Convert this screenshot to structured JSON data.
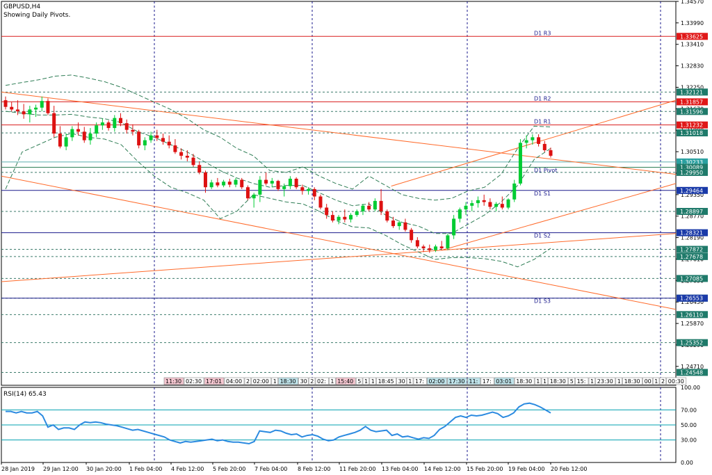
{
  "header": {
    "symbol": "GBPUSD,H4",
    "subtitle": "Showing Daily Pivots."
  },
  "rsi_header": "RSI(14) 65.43",
  "colors": {
    "up": "#00cc33",
    "down": "#dd1111",
    "frame": "#000000",
    "grid": "#1a1a8c",
    "resistance": "#d81b1b",
    "support": "#1a1a8c",
    "trend": "#ff6a2a",
    "band": "#2e7d55",
    "rsi_line": "#2b8ae0",
    "rsi_level": "#00a0b0",
    "tag_red": "#e01818",
    "tag_blue": "#1a3aa8",
    "tag_teal": "#1f7a6a",
    "tag_teal_light": "#2aa0a0"
  },
  "chart_data": {
    "type": "candlestick",
    "title": "GBPUSD,H4",
    "subtitle": "Showing Daily Pivots.",
    "ylim": [
      1.242,
      1.3457
    ],
    "price_ticks": [
      "1.34570",
      "1.33990",
      "1.33410",
      "1.32830",
      "1.32250",
      "1.31670",
      "1.31090",
      "1.30510",
      "1.29930",
      "1.29350",
      "1.28770",
      "1.28190",
      "1.27610",
      "1.27030",
      "1.26450",
      "1.25870",
      "1.25290",
      "1.24710"
    ],
    "time_labels": [
      "28 Jan 2019",
      "29 Jan 12:00",
      "30 Jan 20:00",
      "1 Feb 04:00",
      "4 Feb 12:00",
      "5 Feb 20:00",
      "7 Feb 04:00",
      "8 Feb 12:00",
      "11 Feb 20:00",
      "13 Feb 04:00",
      "14 Feb 12:00",
      "15 Feb 20:00",
      "19 Feb 04:00",
      "20 Feb 12:00"
    ],
    "pivots": [
      {
        "name": "D1 R3",
        "value": "1.33625",
        "kind": "resistance"
      },
      {
        "name": "D1 R2",
        "value": "1.31857",
        "kind": "resistance"
      },
      {
        "name": "D1 R1",
        "value": "1.31232",
        "kind": "resistance"
      },
      {
        "name": "D1 Pivot",
        "value": "1.30089",
        "kind": "pivot"
      },
      {
        "name": "D1 S1",
        "value": "1.29464",
        "kind": "support"
      },
      {
        "name": "D1 S2",
        "value": "1.28321",
        "kind": "support"
      },
      {
        "name": "D1 S3",
        "value": "1.26553",
        "kind": "support"
      }
    ],
    "price_tags": [
      {
        "value": "1.33625",
        "style": "red"
      },
      {
        "value": "1.32121",
        "style": "teal"
      },
      {
        "value": "1.31857",
        "style": "red"
      },
      {
        "value": "1.31596",
        "style": "teal"
      },
      {
        "value": "1.31232",
        "style": "red"
      },
      {
        "value": "1.31018",
        "style": "teal"
      },
      {
        "value": "1.30233",
        "style": "teal_light"
      },
      {
        "value": "1.30089",
        "style": "teal"
      },
      {
        "value": "1.29950",
        "style": "teal"
      },
      {
        "value": "1.29464",
        "style": "blue"
      },
      {
        "value": "1.28897",
        "style": "teal"
      },
      {
        "value": "1.28321",
        "style": "blue"
      },
      {
        "value": "1.27872",
        "style": "teal"
      },
      {
        "value": "1.27678",
        "style": "teal"
      },
      {
        "value": "1.27085",
        "style": "teal"
      },
      {
        "value": "1.26554",
        "style": "teal"
      },
      {
        "value": "1.26553",
        "style": "blue"
      },
      {
        "value": "1.26110",
        "style": "teal"
      },
      {
        "value": "1.25352",
        "style": "teal"
      },
      {
        "value": "1.24548",
        "style": "teal"
      }
    ],
    "dashed_levels": [
      1.32121,
      1.31596,
      1.31018,
      1.2995,
      1.28897,
      1.27872,
      1.27678,
      1.27085,
      1.26554,
      1.2611,
      1.25352,
      1.24548
    ],
    "light_level": 1.30233,
    "time_marks": [
      "11:30",
      "02:30",
      "17:01",
      "04:00",
      "2",
      "02:00",
      "1",
      "18:30",
      "30",
      "2",
      "02:",
      "1",
      "15:40",
      "5",
      "1",
      "1",
      "18:45",
      "30",
      "1",
      "17:",
      "02:00",
      "17:30",
      "11:",
      "17:",
      "03:01",
      "18:30",
      "1",
      "1",
      "18:30",
      "5",
      "15:",
      "1",
      "23:30",
      "1",
      "18:30",
      "00",
      "1",
      "2",
      "00:30"
    ],
    "candles": [
      [
        1.319,
        1.32,
        1.3165,
        1.3172
      ],
      [
        1.3172,
        1.3185,
        1.316,
        1.3165
      ],
      [
        1.3165,
        1.319,
        1.315,
        1.316
      ],
      [
        1.316,
        1.318,
        1.314,
        1.3152
      ],
      [
        1.3152,
        1.3175,
        1.313,
        1.3165
      ],
      [
        1.3165,
        1.3178,
        1.3145,
        1.317
      ],
      [
        1.317,
        1.32,
        1.316,
        1.3188
      ],
      [
        1.3188,
        1.3195,
        1.315,
        1.3155
      ],
      [
        1.3155,
        1.3175,
        1.309,
        1.31
      ],
      [
        1.31,
        1.312,
        1.306,
        1.3065
      ],
      [
        1.3065,
        1.31,
        1.3055,
        1.309
      ],
      [
        1.309,
        1.312,
        1.308,
        1.3112
      ],
      [
        1.3112,
        1.313,
        1.3095,
        1.3105
      ],
      [
        1.3105,
        1.3118,
        1.3075,
        1.3082
      ],
      [
        1.3082,
        1.3115,
        1.307,
        1.31
      ],
      [
        1.31,
        1.313,
        1.309,
        1.3122
      ],
      [
        1.3122,
        1.314,
        1.311,
        1.313
      ],
      [
        1.313,
        1.3135,
        1.3108,
        1.3115
      ],
      [
        1.3115,
        1.315,
        1.3105,
        1.3142
      ],
      [
        1.3142,
        1.3155,
        1.312,
        1.3128
      ],
      [
        1.3128,
        1.3138,
        1.31,
        1.311
      ],
      [
        1.311,
        1.3125,
        1.3095,
        1.3105
      ],
      [
        1.3105,
        1.311,
        1.306,
        1.3068
      ],
      [
        1.3068,
        1.309,
        1.3055,
        1.3082
      ],
      [
        1.3082,
        1.3105,
        1.3075,
        1.3095
      ],
      [
        1.3095,
        1.311,
        1.308,
        1.3088
      ],
      [
        1.3088,
        1.31,
        1.307,
        1.3078
      ],
      [
        1.3078,
        1.3095,
        1.306,
        1.3068
      ],
      [
        1.3068,
        1.3085,
        1.3045,
        1.305
      ],
      [
        1.305,
        1.306,
        1.303,
        1.304
      ],
      [
        1.304,
        1.3055,
        1.3025,
        1.3035
      ],
      [
        1.3035,
        1.3045,
        1.301,
        1.3015
      ],
      [
        1.3015,
        1.3025,
        1.299,
        1.2995
      ],
      [
        1.2995,
        1.3,
        1.294,
        1.2955
      ],
      [
        1.2955,
        1.2975,
        1.295,
        1.2968
      ],
      [
        1.2968,
        1.298,
        1.2955,
        1.296
      ],
      [
        1.296,
        1.2975,
        1.2955,
        1.297
      ],
      [
        1.297,
        1.2978,
        1.2955,
        1.2962
      ],
      [
        1.2962,
        1.298,
        1.2955,
        1.2975
      ],
      [
        1.2975,
        1.298,
        1.295,
        1.2955
      ],
      [
        1.2955,
        1.296,
        1.292,
        1.2925
      ],
      [
        1.2925,
        1.294,
        1.29,
        1.2935
      ],
      [
        1.2935,
        1.2985,
        1.2915,
        1.2975
      ],
      [
        1.2975,
        1.2995,
        1.296,
        1.2965
      ],
      [
        1.2965,
        1.298,
        1.2955,
        1.2972
      ],
      [
        1.2972,
        1.2975,
        1.2945,
        1.295
      ],
      [
        1.295,
        1.2965,
        1.293,
        1.2958
      ],
      [
        1.2958,
        1.2985,
        1.295,
        1.2978
      ],
      [
        1.2978,
        1.2982,
        1.295,
        1.2955
      ],
      [
        1.2955,
        1.2962,
        1.2935,
        1.2945
      ],
      [
        1.2945,
        1.2955,
        1.2935,
        1.295
      ],
      [
        1.295,
        1.2955,
        1.292,
        1.293
      ],
      [
        1.293,
        1.2935,
        1.2895,
        1.29
      ],
      [
        1.29,
        1.291,
        1.287,
        1.288
      ],
      [
        1.288,
        1.289,
        1.286,
        1.2865
      ],
      [
        1.2865,
        1.288,
        1.2855,
        1.2875
      ],
      [
        1.2875,
        1.2895,
        1.286,
        1.2868
      ],
      [
        1.2868,
        1.2885,
        1.286,
        1.288
      ],
      [
        1.288,
        1.2895,
        1.2875,
        1.289
      ],
      [
        1.289,
        1.291,
        1.288,
        1.2905
      ],
      [
        1.2905,
        1.2915,
        1.289,
        1.2895
      ],
      [
        1.2895,
        1.2925,
        1.289,
        1.2918
      ],
      [
        1.2918,
        1.295,
        1.288,
        1.289
      ],
      [
        1.289,
        1.2895,
        1.286,
        1.2865
      ],
      [
        1.2865,
        1.2875,
        1.2845,
        1.285
      ],
      [
        1.285,
        1.2865,
        1.284,
        1.286
      ],
      [
        1.286,
        1.287,
        1.2835,
        1.284
      ],
      [
        1.284,
        1.2845,
        1.2805,
        1.2812
      ],
      [
        1.2812,
        1.282,
        1.279,
        1.2795
      ],
      [
        1.2795,
        1.28,
        1.278,
        1.279
      ],
      [
        1.279,
        1.28,
        1.2778,
        1.2785
      ],
      [
        1.2785,
        1.28,
        1.278,
        1.2795
      ],
      [
        1.2795,
        1.281,
        1.2785,
        1.279
      ],
      [
        1.279,
        1.283,
        1.2785,
        1.2825
      ],
      [
        1.2825,
        1.288,
        1.2815,
        1.287
      ],
      [
        1.287,
        1.29,
        1.286,
        1.2895
      ],
      [
        1.2895,
        1.2915,
        1.288,
        1.2905
      ],
      [
        1.2905,
        1.292,
        1.289,
        1.2912
      ],
      [
        1.2912,
        1.293,
        1.29,
        1.292
      ],
      [
        1.292,
        1.2935,
        1.2905,
        1.2915
      ],
      [
        1.2915,
        1.2925,
        1.2895,
        1.2902
      ],
      [
        1.2902,
        1.2915,
        1.289,
        1.291
      ],
      [
        1.291,
        1.293,
        1.2895,
        1.29
      ],
      [
        1.29,
        1.2925,
        1.2895,
        1.2922
      ],
      [
        1.2922,
        1.2975,
        1.2915,
        1.2965
      ],
      [
        1.2965,
        1.3085,
        1.296,
        1.3075
      ],
      [
        1.3075,
        1.3095,
        1.306,
        1.3082
      ],
      [
        1.3082,
        1.3098,
        1.307,
        1.309
      ],
      [
        1.309,
        1.3098,
        1.3065,
        1.3072
      ],
      [
        1.3072,
        1.308,
        1.305,
        1.3055
      ],
      [
        1.3055,
        1.3062,
        1.3035,
        1.304
      ]
    ],
    "bollinger": {
      "upper": [
        1.323,
        1.3238,
        1.3245,
        1.3255,
        1.3258,
        1.325,
        1.324,
        1.3225,
        1.3205,
        1.3185,
        1.3165,
        1.314,
        1.311,
        1.309,
        1.306,
        1.304,
        1.3,
        1.2995,
        1.301,
        1.2985,
        1.2965,
        1.295,
        1.2985,
        1.296,
        1.2935,
        1.2925,
        1.292,
        1.2925,
        1.2945,
        1.2955,
        1.299,
        1.306,
        1.312,
        1.3118
      ],
      "mid": [
        1.316,
        1.3155,
        1.315,
        1.315,
        1.3152,
        1.3145,
        1.314,
        1.313,
        1.3105,
        1.309,
        1.307,
        1.305,
        1.3025,
        1.3,
        1.298,
        1.2965,
        1.2955,
        1.296,
        1.296,
        1.294,
        1.292,
        1.2905,
        1.291,
        1.288,
        1.286,
        1.285,
        1.283,
        1.283,
        1.2855,
        1.288,
        1.2915,
        1.296,
        1.303,
        1.306
      ],
      "lower": [
        1.295,
        1.305,
        1.307,
        1.309,
        1.31,
        1.309,
        1.3085,
        1.307,
        1.3025,
        1.2985,
        1.2955,
        1.294,
        1.292,
        1.287,
        1.289,
        1.2935,
        1.2925,
        1.2915,
        1.291,
        1.289,
        1.2865,
        1.2848,
        1.2845,
        1.2825,
        1.28,
        1.278,
        1.276,
        1.2765,
        1.2765,
        1.2762,
        1.2755,
        1.274,
        1.276,
        1.279
      ]
    },
    "trendlines": [
      {
        "x1": 0,
        "y1": 1.3212,
        "x2": 1.0,
        "y2": 1.299
      },
      {
        "x1": 0,
        "y1": 1.2985,
        "x2": 1.0,
        "y2": 1.2625
      },
      {
        "x1": 0,
        "y1": 1.27,
        "x2": 1.0,
        "y2": 1.283
      },
      {
        "x1": 0.578,
        "y1": 1.2958,
        "x2": 1.0,
        "y2": 1.319
      },
      {
        "x1": 0.653,
        "y1": 1.2785,
        "x2": 1.0,
        "y2": 1.2965
      }
    ],
    "rsi": {
      "name": "RSI(14)",
      "value": "65.43",
      "ylim": [
        0,
        100
      ],
      "levels": [
        70,
        50,
        30
      ],
      "ticks": [
        "100.00",
        "70.00",
        "50.00",
        "30.00",
        "0.00"
      ],
      "values": [
        68,
        68,
        66,
        68,
        66,
        66,
        68,
        62,
        47,
        50,
        44,
        46,
        46,
        44,
        50,
        54,
        53,
        54,
        53,
        51,
        50,
        49,
        47,
        45,
        43,
        44,
        42,
        40,
        38,
        36,
        34,
        30,
        28,
        26,
        28,
        27,
        28,
        29,
        30,
        31,
        29,
        30,
        28,
        27,
        27,
        26,
        25,
        28,
        42,
        41,
        40,
        43,
        42,
        39,
        37,
        38,
        34,
        36,
        37,
        35,
        31,
        29,
        30,
        34,
        36,
        38,
        40,
        43,
        48,
        43,
        41,
        42,
        43,
        36,
        38,
        34,
        35,
        33,
        31,
        33,
        32,
        36,
        44,
        48,
        54,
        60,
        62,
        60,
        63,
        62,
        63,
        65,
        67,
        65,
        60,
        62,
        66,
        74,
        78,
        79,
        77,
        74,
        70,
        66
      ]
    }
  }
}
